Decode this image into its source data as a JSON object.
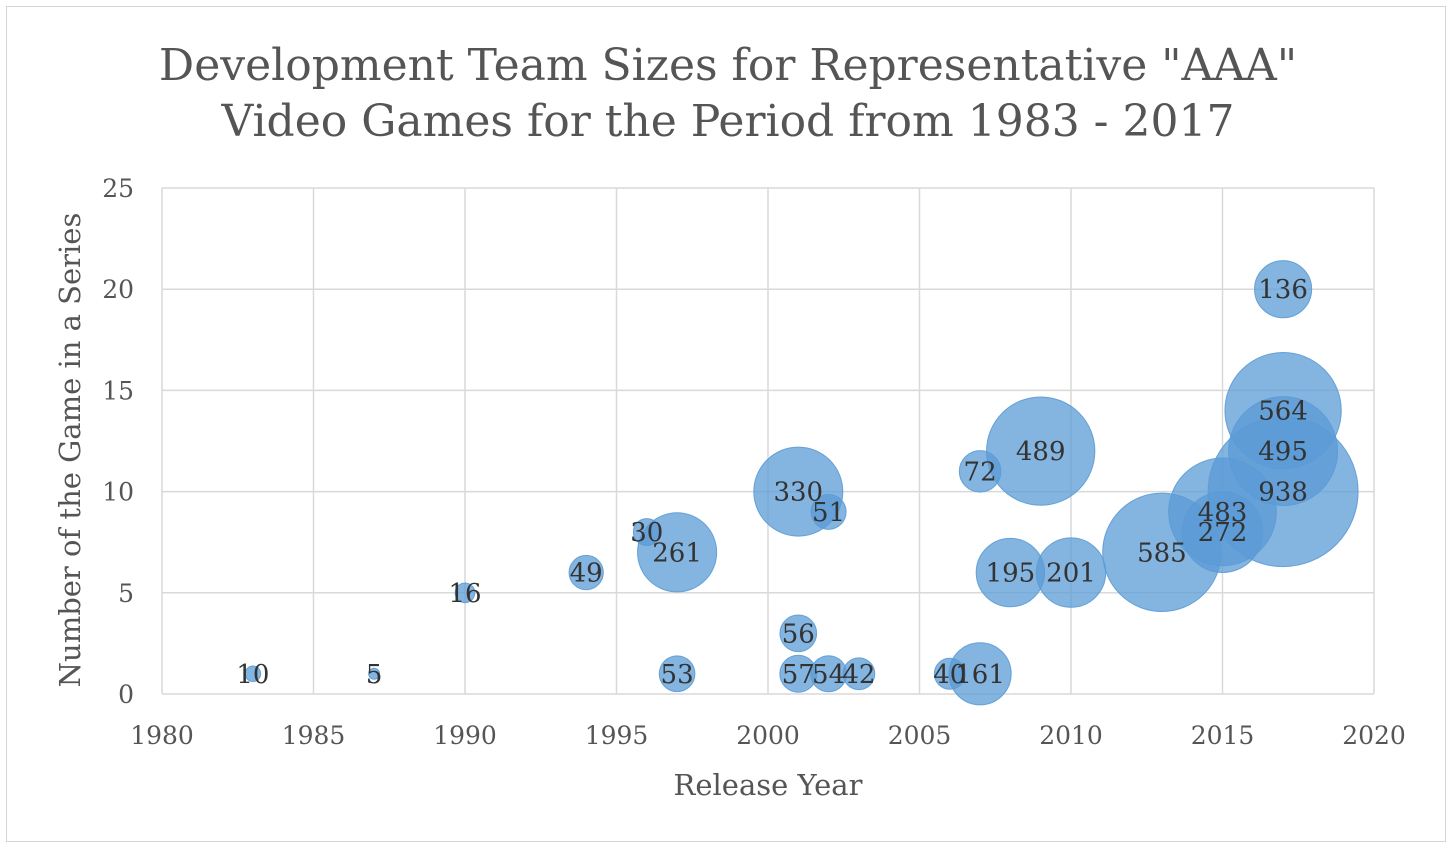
{
  "chart_data": {
    "type": "bubble",
    "title_lines": [
      "Development Team Sizes for Representative \"AAA\"",
      "Video Games for the Period from 1983 - 2017"
    ],
    "xlabel": "Release Year",
    "ylabel": "Number of the Game in a Series",
    "xlim": [
      1980,
      2020
    ],
    "ylim": [
      0,
      25
    ],
    "xticks": [
      1980,
      1985,
      1990,
      1995,
      2000,
      2005,
      2010,
      2015,
      2020
    ],
    "yticks": [
      0,
      5,
      10,
      15,
      20,
      25
    ],
    "grid": true,
    "legend": "none",
    "colors": {
      "bubble": "#5b9bd5",
      "grid": "#d9d9d9",
      "text": "#555555"
    },
    "points": [
      {
        "x": 1983,
        "y": 1,
        "size": 10
      },
      {
        "x": 1987,
        "y": 1,
        "size": 5
      },
      {
        "x": 1990,
        "y": 5,
        "size": 16
      },
      {
        "x": 1994,
        "y": 6,
        "size": 49
      },
      {
        "x": 1996,
        "y": 8,
        "size": 30
      },
      {
        "x": 1997,
        "y": 7,
        "size": 261
      },
      {
        "x": 1997,
        "y": 1,
        "size": 53
      },
      {
        "x": 2001,
        "y": 10,
        "size": 330
      },
      {
        "x": 2002,
        "y": 9,
        "size": 51
      },
      {
        "x": 2001,
        "y": 3,
        "size": 56
      },
      {
        "x": 2001,
        "y": 1,
        "size": 57
      },
      {
        "x": 2002,
        "y": 1,
        "size": 54
      },
      {
        "x": 2003,
        "y": 1,
        "size": 42
      },
      {
        "x": 2006,
        "y": 1,
        "size": 40
      },
      {
        "x": 2007,
        "y": 1,
        "size": 161
      },
      {
        "x": 2007,
        "y": 11,
        "size": 72
      },
      {
        "x": 2009,
        "y": 12,
        "size": 489
      },
      {
        "x": 2008,
        "y": 6,
        "size": 195
      },
      {
        "x": 2010,
        "y": 6,
        "size": 201
      },
      {
        "x": 2013,
        "y": 7,
        "size": 585
      },
      {
        "x": 2015,
        "y": 9,
        "size": 483
      },
      {
        "x": 2015,
        "y": 8,
        "size": 272
      },
      {
        "x": 2017,
        "y": 14,
        "size": 564
      },
      {
        "x": 2017,
        "y": 12,
        "size": 495
      },
      {
        "x": 2017,
        "y": 10,
        "size": 938
      },
      {
        "x": 2017,
        "y": 20,
        "size": 136
      }
    ]
  }
}
